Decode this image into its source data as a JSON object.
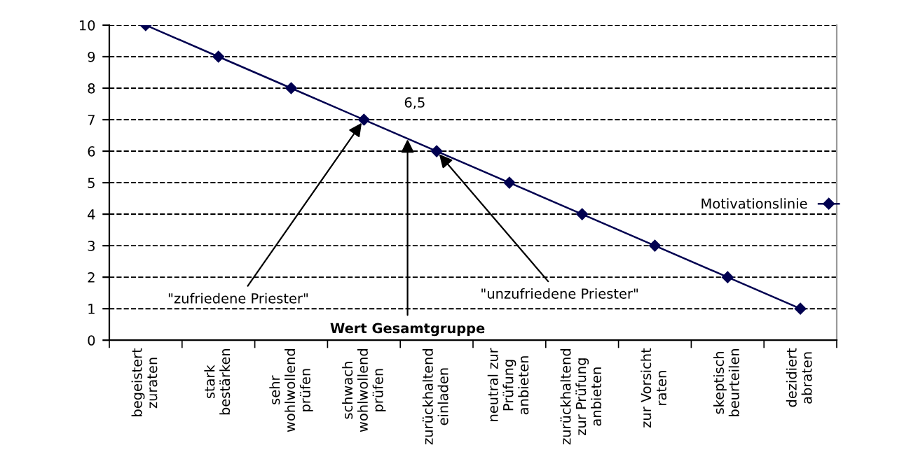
{
  "chart_data": {
    "type": "line",
    "categories": [
      "begeistert\nzuraten",
      "stark\nbestärken",
      "sehr\nwohlwollend\nprüfen",
      "schwach\nwohlwollend\nprüfen",
      "zurückhaltend\neinladen",
      "neutral zur\nPrüfung\nanbieten",
      "zurückhaltend\nzur Prüfung\nanbieten",
      "zur Vorsicht\nraten",
      "skeptisch\nbeurteilen",
      "dezidiert\nabraten"
    ],
    "series": [
      {
        "name": "Motivationslinie",
        "color": "#000050",
        "values": [
          10,
          9,
          8,
          7,
          6,
          5,
          4,
          3,
          2,
          1
        ]
      }
    ],
    "ylim": [
      0,
      10
    ],
    "yticks": [
      0,
      1,
      2,
      3,
      4,
      5,
      6,
      7,
      8,
      9,
      10
    ],
    "grid": "y",
    "legend": "right",
    "marker": "diamond",
    "line_style": "solid",
    "annotations": [
      "6,5",
      {
        "text": "\"zufriedene Priester\"",
        "x": "schwach\nwohlwollend\nprüfen",
        "y": 7
      },
      {
        "text": "Wert Gesamtgruppe",
        "y": 6.5
      },
      {
        "text": "\"unzufriedene Priester\"",
        "x": "zurückhaltend\neinladen",
        "y": 6
      }
    ]
  }
}
